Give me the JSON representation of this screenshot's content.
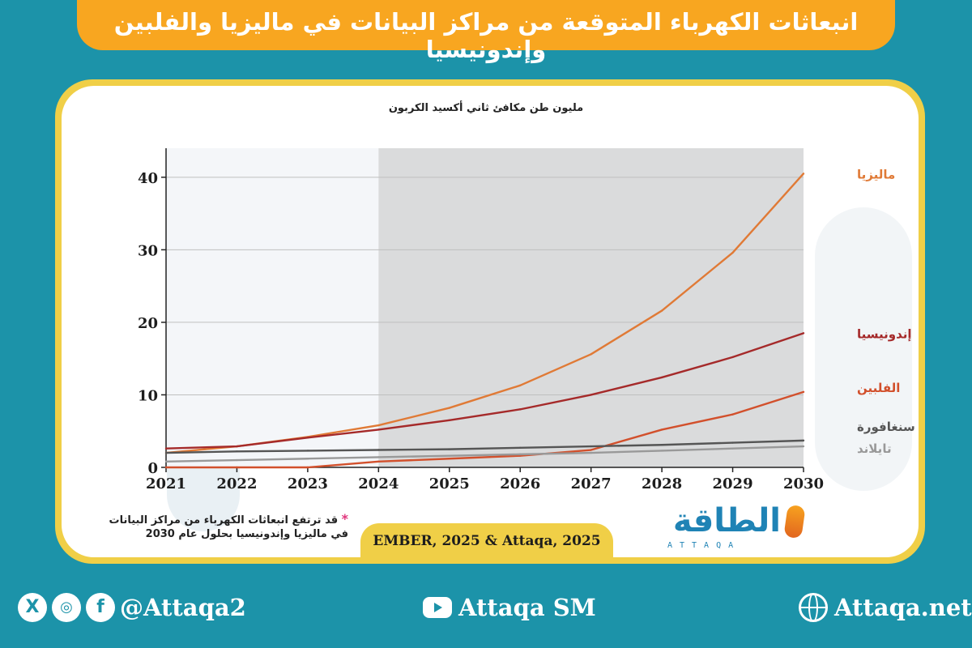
{
  "title": "انبعاثات الكهرباء المتوقعة من مراكز البيانات في ماليزيا والفلبين وإندونيسيا",
  "source": "EMBER, 2025 & Attaqa, 2025",
  "note": {
    "star": "*",
    "line1": "قد ترتفع انبعاثات الكهرباء من مراكز البيانات",
    "line2": "في ماليزيا وإندونيسيا بحلول عام 2030"
  },
  "logo": {
    "text": "الطاقة",
    "sub": "ATTAQA"
  },
  "footer": {
    "twitter_icon": "x-icon",
    "instagram_icon": "instagram-icon",
    "facebook_icon": "facebook-icon",
    "social_handle": "@Attaqa2",
    "youtube_handle": "Attaqa SM",
    "website": "Attaqa.net"
  },
  "colors": {
    "background": "#1c93a9",
    "banner": "#f8a620",
    "frame": "#f0cf47",
    "malaysia": "#e07a36",
    "indonesia": "#a52a2a",
    "philippines": "#d2502c",
    "singapore": "#555555",
    "thailand": "#999999",
    "forecast_shade": "#dadbdc",
    "history_shade": "#f4f6f9"
  },
  "chart_data": {
    "type": "line",
    "ylabel": "مليون طن مكافئ ثاني أكسيد الكربون",
    "xlabel": "",
    "x": [
      2021,
      2022,
      2023,
      2024,
      2025,
      2026,
      2027,
      2028,
      2029,
      2030
    ],
    "ylim": [
      0,
      44
    ],
    "yticks": [
      0,
      10,
      20,
      30,
      40
    ],
    "forecast_from": 2024,
    "grid": true,
    "legend_placement": "right-end labels",
    "series": [
      {
        "name": "ماليزيا",
        "color_key": "malaysia",
        "values": [
          2.0,
          2.9,
          4.2,
          5.8,
          8.2,
          11.3,
          15.6,
          21.6,
          29.6,
          40.5
        ]
      },
      {
        "name": "إندونيسيا",
        "color_key": "indonesia",
        "values": [
          2.6,
          2.9,
          4.1,
          5.2,
          6.5,
          8.0,
          10.0,
          12.4,
          15.2,
          18.5
        ]
      },
      {
        "name": "الفلبين",
        "color_key": "philippines",
        "values": [
          0.0,
          0.0,
          0.0,
          0.8,
          1.2,
          1.6,
          2.4,
          5.2,
          7.3,
          10.4
        ]
      },
      {
        "name": "سنغافورة",
        "color_key": "singapore",
        "values": [
          2.0,
          2.2,
          2.3,
          2.4,
          2.5,
          2.7,
          2.9,
          3.1,
          3.4,
          3.7
        ]
      },
      {
        "name": "تايلاند",
        "color_key": "thailand",
        "values": [
          0.8,
          1.0,
          1.2,
          1.4,
          1.6,
          1.8,
          2.0,
          2.3,
          2.6,
          2.9
        ]
      }
    ]
  }
}
